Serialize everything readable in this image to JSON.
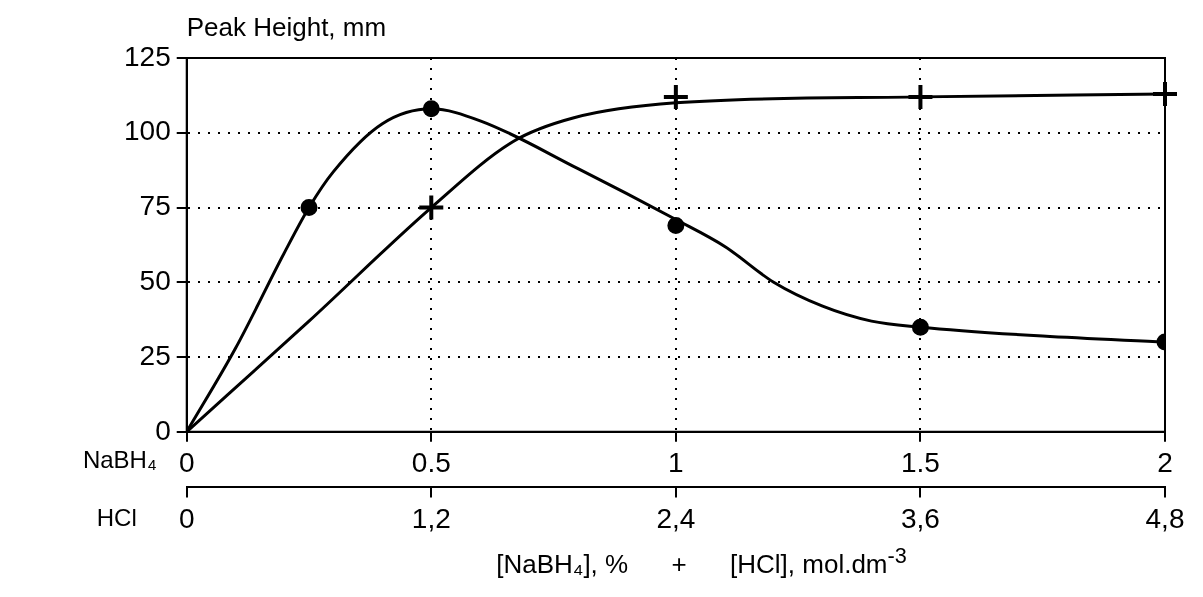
{
  "chart_data": {
    "type": "scatter",
    "ylabel": "Peak Height, mm",
    "xlabel": "NaBH₄",
    "x2label": "HCl",
    "annotations": [
      "[NaBH₄], %      +      [HCl], mol.dm$^{-3}$"
    ],
    "xlim": [
      0,
      2
    ],
    "xticks": [
      0,
      0.5,
      1,
      1.5,
      2
    ],
    "x2lim": [
      0,
      4.8
    ],
    "x2ticks": [
      0,
      {
        "value": 1.2,
        "label": "1,2"
      },
      {
        "value": 2.4,
        "label": "2,4"
      },
      {
        "value": 3.6,
        "label": "3,6"
      },
      {
        "value": 4.8,
        "label": "4,8"
      }
    ],
    "ylim": [
      0,
      125
    ],
    "yticks": [
      0,
      25,
      50,
      75,
      100,
      125
    ],
    "grid": true,
    "legend": false,
    "series": [
      {
        "marker": "circle",
        "color": "#000000",
        "x": [
          0.25,
          0.5,
          1,
          1.5,
          2
        ],
        "values": [
          75,
          108,
          69,
          35,
          30
        ]
      },
      {
        "marker": "cross",
        "axis": "x2",
        "color": "#000000",
        "x": [
          1.2,
          2.4,
          3.6,
          4.8
        ],
        "values": [
          75,
          112,
          112,
          113
        ]
      },
      {
        "type": "line",
        "marker": "none",
        "color": "#000000",
        "x": [
          0,
          0.1,
          0.2,
          0.25,
          0.3,
          0.4,
          0.5,
          0.6,
          0.8,
          1,
          1.1,
          1.2,
          1.3,
          1.4,
          1.5,
          1.75,
          2
        ],
        "values": [
          0,
          28,
          60,
          75,
          87,
          103,
          108,
          104,
          88,
          71,
          62,
          50,
          42,
          37,
          35,
          32,
          30
        ]
      },
      {
        "type": "line",
        "marker": "none",
        "axis": "x2",
        "color": "#000000",
        "x": [
          0,
          0.6,
          1.2,
          1.6,
          1.9,
          2.4,
          3.6,
          4.8
        ],
        "values": [
          0,
          37,
          75,
          97,
          105,
          110,
          112,
          113
        ]
      }
    ]
  }
}
